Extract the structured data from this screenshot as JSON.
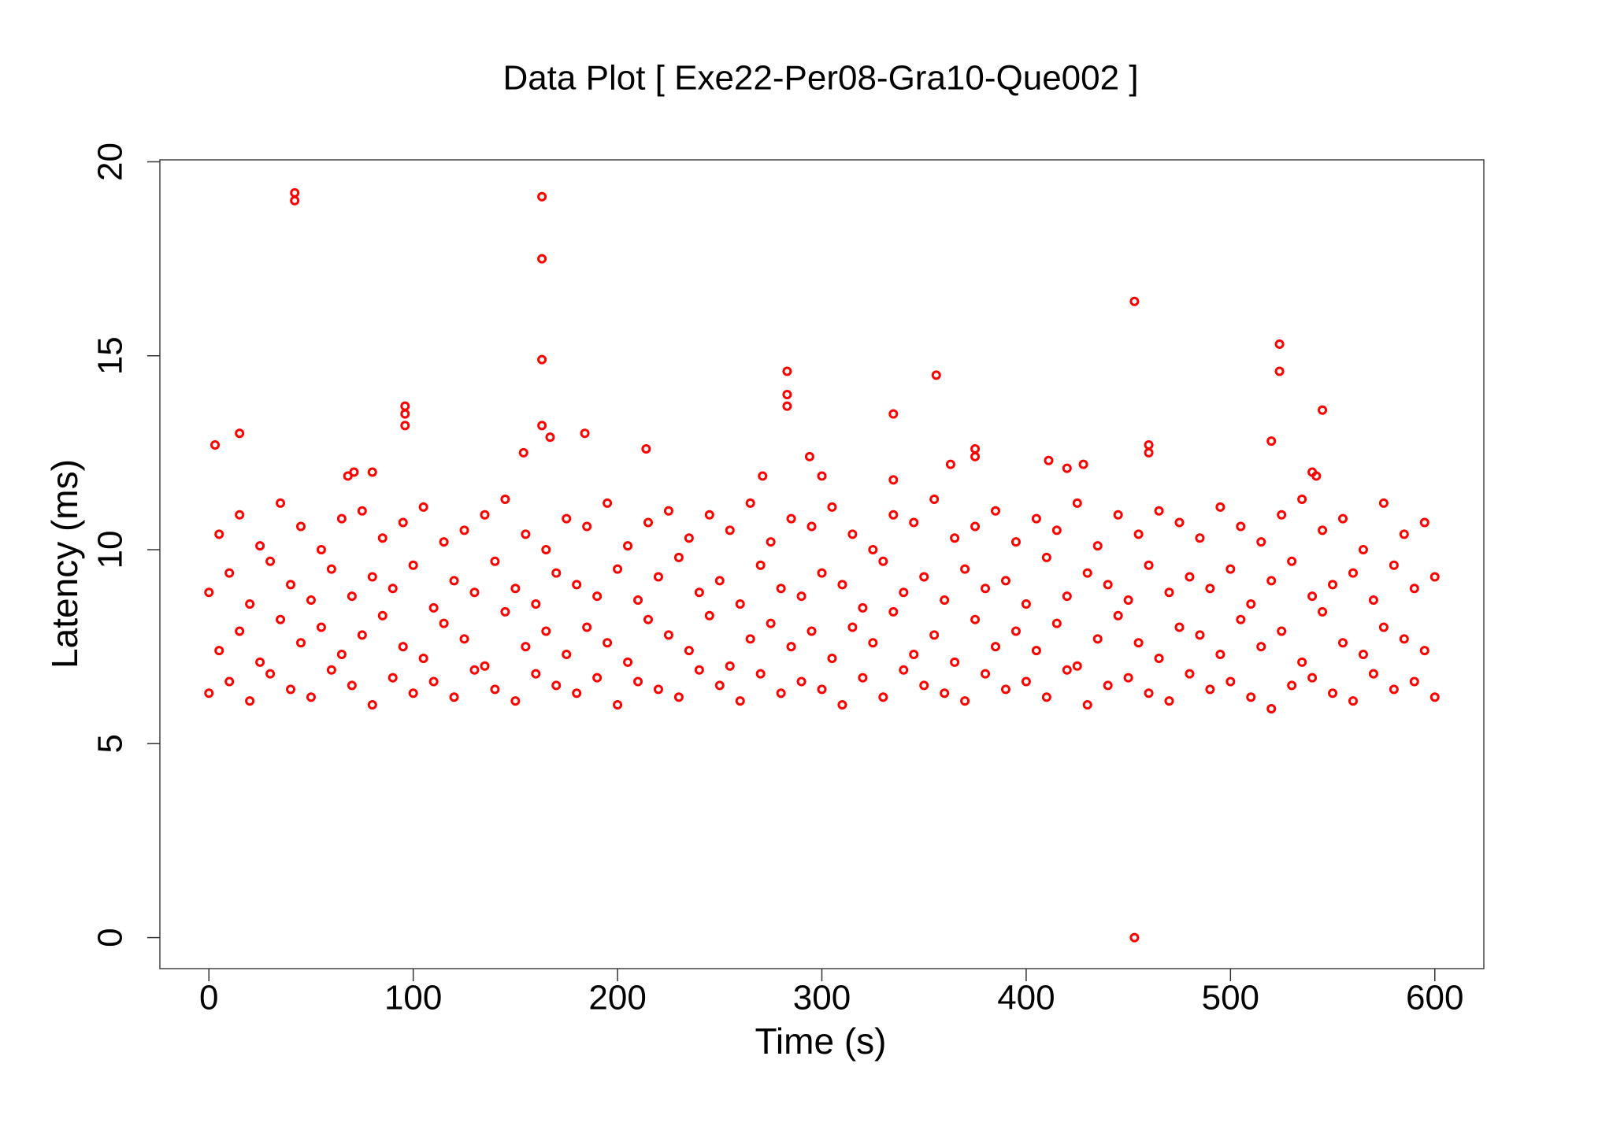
{
  "chart_data": {
    "type": "scatter",
    "title": "Data Plot [ Exe22-Per08-Gra10-Que002 ]",
    "x_label": "Time (s)",
    "y_label": "Latency (ms)",
    "color": "#ff0000",
    "xlim": [
      -24,
      624
    ],
    "ylim": [
      -0.8,
      20.05
    ],
    "xticks": [
      0,
      100,
      200,
      300,
      400,
      500,
      600
    ],
    "yticks": [
      0,
      5,
      10,
      15,
      20
    ],
    "x": [
      0,
      10,
      20,
      30,
      40,
      50,
      60,
      70,
      80,
      90,
      100,
      110,
      120,
      130,
      140,
      150,
      160,
      170,
      180,
      190,
      200,
      210,
      220,
      230,
      240,
      250,
      260,
      270,
      280,
      290,
      300,
      310,
      320,
      330,
      340,
      350,
      360,
      370,
      380,
      390,
      400,
      410,
      420,
      430,
      440,
      450,
      460,
      470,
      480,
      490,
      500,
      510,
      520,
      530,
      540,
      550,
      560,
      570,
      580,
      590,
      600,
      5,
      15,
      25,
      35,
      45,
      55,
      65,
      75,
      85,
      95,
      105,
      115,
      125,
      135,
      145,
      155,
      165,
      175,
      185,
      195,
      205,
      215,
      225,
      235,
      245,
      255,
      265,
      275,
      285,
      295,
      305,
      315,
      325,
      335,
      345,
      355,
      365,
      375,
      385,
      395,
      405,
      415,
      425,
      435,
      445,
      455,
      465,
      475,
      485,
      495,
      505,
      515,
      525,
      535,
      545,
      555,
      565,
      575,
      585,
      595,
      0,
      10,
      20,
      30,
      40,
      50,
      60,
      70,
      80,
      90,
      100,
      110,
      120,
      130,
      140,
      150,
      160,
      170,
      180,
      190,
      200,
      210,
      220,
      230,
      240,
      250,
      260,
      270,
      280,
      290,
      300,
      310,
      320,
      330,
      340,
      350,
      360,
      370,
      380,
      390,
      400,
      410,
      420,
      430,
      440,
      450,
      460,
      470,
      480,
      490,
      500,
      510,
      520,
      530,
      540,
      550,
      560,
      570,
      580,
      590,
      600,
      5,
      15,
      25,
      35,
      45,
      55,
      65,
      75,
      85,
      95,
      105,
      115,
      125,
      135,
      145,
      155,
      165,
      175,
      185,
      195,
      205,
      215,
      225,
      235,
      245,
      255,
      265,
      275,
      285,
      295,
      305,
      315,
      325,
      335,
      345,
      355,
      365,
      375,
      385,
      395,
      405,
      415,
      425,
      435,
      445,
      455,
      465,
      475,
      485,
      495,
      505,
      515,
      525,
      535,
      545,
      555,
      565,
      575,
      585,
      595,
      42,
      42,
      163,
      163,
      163,
      163,
      167,
      184,
      214,
      154,
      96,
      96,
      96,
      3,
      15,
      283,
      283,
      283,
      294,
      300,
      335,
      335,
      356,
      363,
      375,
      375,
      411,
      420,
      428,
      453,
      453,
      460,
      460,
      520,
      524,
      524,
      545,
      540,
      542,
      68,
      71,
      80,
      271
    ],
    "values": [
      6.3,
      6.6,
      6.1,
      6.8,
      6.4,
      6.2,
      6.9,
      6.5,
      6.0,
      6.7,
      6.3,
      6.6,
      6.2,
      6.9,
      6.4,
      6.1,
      6.8,
      6.5,
      6.3,
      6.7,
      6.0,
      6.6,
      6.4,
      6.2,
      6.9,
      6.5,
      6.1,
      6.8,
      6.3,
      6.6,
      6.4,
      6.0,
      6.7,
      6.2,
      6.9,
      6.5,
      6.3,
      6.1,
      6.8,
      6.4,
      6.6,
      6.2,
      6.9,
      6.0,
      6.5,
      6.7,
      6.3,
      6.1,
      6.8,
      6.4,
      6.6,
      6.2,
      5.9,
      6.5,
      6.7,
      6.3,
      6.1,
      6.8,
      6.4,
      6.6,
      6.2,
      7.4,
      7.9,
      7.1,
      8.2,
      7.6,
      8.0,
      7.3,
      7.8,
      8.3,
      7.5,
      7.2,
      8.1,
      7.7,
      7.0,
      8.4,
      7.5,
      7.9,
      7.3,
      8.0,
      7.6,
      7.1,
      8.2,
      7.8,
      7.4,
      8.3,
      7.0,
      7.7,
      8.1,
      7.5,
      7.9,
      7.2,
      8.0,
      7.6,
      8.4,
      7.3,
      7.8,
      7.1,
      8.2,
      7.5,
      7.9,
      7.4,
      8.1,
      7.0,
      7.7,
      8.3,
      7.6,
      7.2,
      8.0,
      7.8,
      7.3,
      8.2,
      7.5,
      7.9,
      7.1,
      8.4,
      7.6,
      7.3,
      8.0,
      7.7,
      7.4,
      8.9,
      9.4,
      8.6,
      9.7,
      9.1,
      8.7,
      9.5,
      8.8,
      9.3,
      9.0,
      9.6,
      8.5,
      9.2,
      8.9,
      9.7,
      9.0,
      8.6,
      9.4,
      9.1,
      8.8,
      9.5,
      8.7,
      9.3,
      9.8,
      8.9,
      9.2,
      8.6,
      9.6,
      9.0,
      8.8,
      9.4,
      9.1,
      8.5,
      9.7,
      8.9,
      9.3,
      8.7,
      9.5,
      9.0,
      9.2,
      8.6,
      9.8,
      8.8,
      9.4,
      9.1,
      8.7,
      9.6,
      8.9,
      9.3,
      9.0,
      9.5,
      8.6,
      9.2,
      9.7,
      8.8,
      9.1,
      9.4,
      8.7,
      9.6,
      9.0,
      9.3,
      10.4,
      10.9,
      10.1,
      11.2,
      10.6,
      10.0,
      10.8,
      11.0,
      10.3,
      10.7,
      11.1,
      10.2,
      10.5,
      10.9,
      11.3,
      10.4,
      10.0,
      10.8,
      10.6,
      11.2,
      10.1,
      10.7,
      11.0,
      10.3,
      10.9,
      10.5,
      11.2,
      10.2,
      10.8,
      10.6,
      11.1,
      10.4,
      10.0,
      10.9,
      10.7,
      11.3,
      10.3,
      10.6,
      11.0,
      10.2,
      10.8,
      10.5,
      11.2,
      10.1,
      10.9,
      10.4,
      11.0,
      10.7,
      10.3,
      11.1,
      10.6,
      10.2,
      10.9,
      11.3,
      10.5,
      10.8,
      10.0,
      11.2,
      10.4,
      10.7,
      19.2,
      19.0,
      19.1,
      17.5,
      14.9,
      13.2,
      12.9,
      13.0,
      12.6,
      12.5,
      13.7,
      13.5,
      13.2,
      12.7,
      13.0,
      14.6,
      14.0,
      13.7,
      12.4,
      11.9,
      13.5,
      11.8,
      14.5,
      12.2,
      12.6,
      12.4,
      12.3,
      12.1,
      12.2,
      16.4,
      0,
      12.7,
      12.5,
      12.8,
      15.3,
      14.6,
      13.6,
      12.0,
      11.9,
      11.9,
      12.0,
      12.0,
      11.9
    ]
  }
}
